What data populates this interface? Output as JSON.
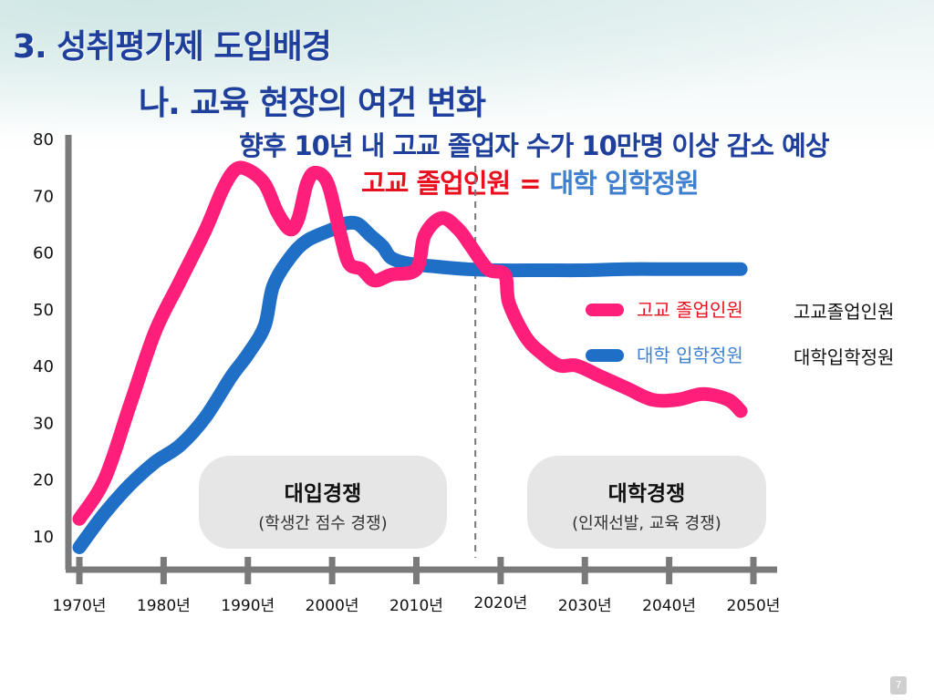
{
  "slide": {
    "title": "3. 성취평가제 도입배경",
    "subtitle": "나. 교육 현장의 여건 변화",
    "headline": "향후 10년 내 고교 졸업자 수가 10만명 이상 감소 예상",
    "equation": {
      "left": "고교 졸업인원",
      "operator": "=",
      "right": "대학 입학정원"
    },
    "boxes": [
      {
        "title": "대입경쟁",
        "desc": "(학생간 점수 경쟁)"
      },
      {
        "title": "대학경쟁",
        "desc": "(인재선발, 교육 경쟁)"
      }
    ],
    "page_number": "7"
  },
  "colors": {
    "graduates": "#ff1f7a",
    "admissions": "#1f6fc6",
    "title": "#1f3f9c",
    "eq_red": "#e8101e",
    "eq_blue": "#3f7fcf"
  },
  "chart_data": {
    "type": "line",
    "x_tick_labels": [
      "1970년",
      "1980년",
      "1990년",
      "2000년",
      "2010년",
      "2020년",
      "2030년",
      "2040년",
      "2050년"
    ],
    "y_ticks": [
      10,
      20,
      30,
      40,
      50,
      60,
      70,
      80
    ],
    "xlim": [
      1970,
      2050
    ],
    "ylim": [
      5,
      80
    ],
    "divider_year": 2017,
    "series": [
      {
        "name": "고교 졸업인원",
        "legend_label": "고교졸업인원",
        "color": "#ff1f7a",
        "points": [
          [
            1970,
            13
          ],
          [
            1973,
            20
          ],
          [
            1976,
            33
          ],
          [
            1979,
            46
          ],
          [
            1982,
            55
          ],
          [
            1985,
            64
          ],
          [
            1987,
            71
          ],
          [
            1988.5,
            74.5
          ],
          [
            1990,
            74.5
          ],
          [
            1992,
            72
          ],
          [
            1993.5,
            67
          ],
          [
            1995,
            64
          ],
          [
            1996,
            66
          ],
          [
            1997,
            72
          ],
          [
            1998,
            74
          ],
          [
            1999.5,
            72
          ],
          [
            2001,
            63
          ],
          [
            2002,
            58
          ],
          [
            2003.5,
            57
          ],
          [
            2005,
            55
          ],
          [
            2007,
            56
          ],
          [
            2010,
            57
          ],
          [
            2011,
            63
          ],
          [
            2013,
            66
          ],
          [
            2015,
            64
          ],
          [
            2016.5,
            61
          ],
          [
            2018.5,
            57
          ],
          [
            2020.5,
            56
          ],
          [
            2021,
            51
          ],
          [
            2023,
            45
          ],
          [
            2025,
            42
          ],
          [
            2027,
            40
          ],
          [
            2029,
            40
          ],
          [
            2032,
            38
          ],
          [
            2035,
            36
          ],
          [
            2038,
            34
          ],
          [
            2041,
            34
          ],
          [
            2044,
            35
          ],
          [
            2047,
            34
          ],
          [
            2048.5,
            32
          ]
        ]
      },
      {
        "name": "대학 입학정원",
        "legend_label": "대학입학정원",
        "color": "#1f6fc6",
        "points": [
          [
            1970,
            8
          ],
          [
            1973,
            14
          ],
          [
            1976,
            19
          ],
          [
            1979,
            23
          ],
          [
            1982,
            26
          ],
          [
            1985,
            31
          ],
          [
            1988,
            38
          ],
          [
            1990,
            42
          ],
          [
            1992,
            47
          ],
          [
            1993,
            54
          ],
          [
            1995,
            59
          ],
          [
            1997,
            62
          ],
          [
            2000,
            64
          ],
          [
            2001.5,
            65
          ],
          [
            2003,
            65
          ],
          [
            2004.5,
            63
          ],
          [
            2006,
            61
          ],
          [
            2007,
            59
          ],
          [
            2009,
            58
          ],
          [
            2012,
            57.5
          ],
          [
            2016,
            57
          ],
          [
            2020,
            56.8
          ],
          [
            2025,
            56.8
          ],
          [
            2030,
            56.8
          ],
          [
            2035,
            57
          ],
          [
            2040,
            57
          ],
          [
            2045,
            57
          ],
          [
            2048.5,
            57
          ]
        ]
      }
    ]
  }
}
